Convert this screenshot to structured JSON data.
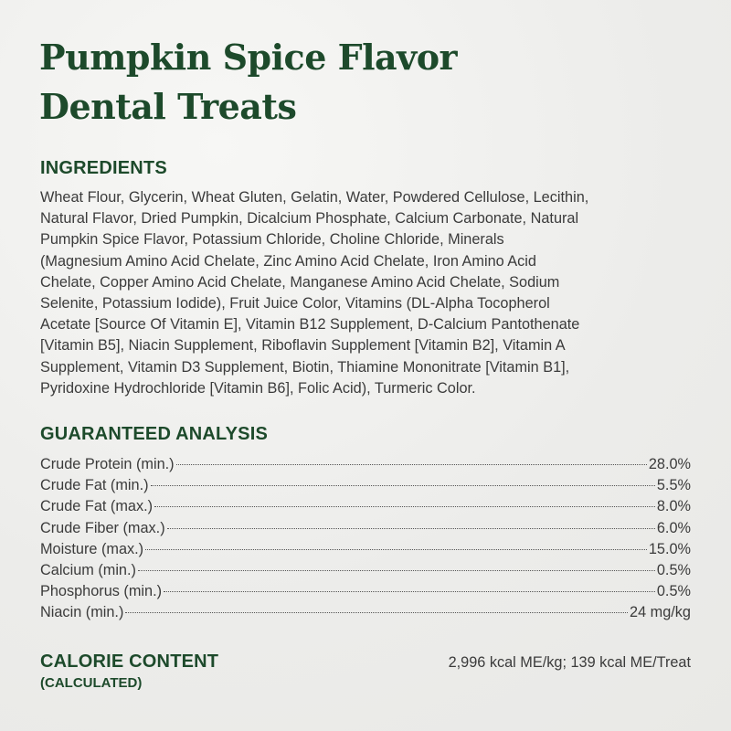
{
  "title_lines": [
    "Pumpkin Spice Flavor",
    "Dental Treats"
  ],
  "ingredients": {
    "heading": "INGREDIENTS",
    "lines": [
      "Wheat Flour, Glycerin, Wheat Gluten, Gelatin, Water, Powdered Cellulose, Lecithin,",
      "Natural Flavor, Dried Pumpkin, Dicalcium Phosphate, Calcium Carbonate, Natural",
      "Pumpkin Spice Flavor, Potassium Chloride, Choline Chloride, Minerals",
      "(Magnesium Amino Acid Chelate, Zinc Amino Acid Chelate, Iron Amino Acid",
      "Chelate, Copper Amino Acid Chelate, Manganese Amino Acid Chelate, Sodium",
      "Selenite, Potassium Iodide), Fruit Juice Color, Vitamins (DL-Alpha Tocopherol",
      "Acetate [Source Of Vitamin E], Vitamin B12 Supplement, D-Calcium Pantothenate",
      "[Vitamin B5], Niacin Supplement, Riboflavin Supplement [Vitamin B2], Vitamin A",
      "Supplement, Vitamin D3 Supplement, Biotin, Thiamine Mononitrate [Vitamin B1],",
      "Pyridoxine Hydrochloride [Vitamin B6], Folic Acid), Turmeric Color."
    ]
  },
  "analysis": {
    "heading": "GUARANTEED ANALYSIS",
    "rows": [
      {
        "label": "Crude Protein (min.)",
        "value": "28.0%"
      },
      {
        "label": "Crude Fat (min.)",
        "value": "5.5%"
      },
      {
        "label": "Crude Fat (max.)",
        "value": "8.0%"
      },
      {
        "label": "Crude Fiber (max.)",
        "value": "6.0%"
      },
      {
        "label": "Moisture (max.)",
        "value": "15.0%"
      },
      {
        "label": "Calcium (min.)",
        "value": "0.5%"
      },
      {
        "label": "Phosphorus (min.)",
        "value": "0.5%"
      },
      {
        "label": "Niacin (min.)",
        "value": "24 mg/kg"
      }
    ]
  },
  "calorie": {
    "heading": "CALORIE CONTENT",
    "subheading": "(CALCULATED)",
    "value": "2,996 kcal ME/kg; 139 kcal ME/Treat"
  },
  "colors": {
    "heading_green": "#1d4a2b",
    "body_text": "#3b3b3b",
    "background": "#f1f1ef"
  }
}
